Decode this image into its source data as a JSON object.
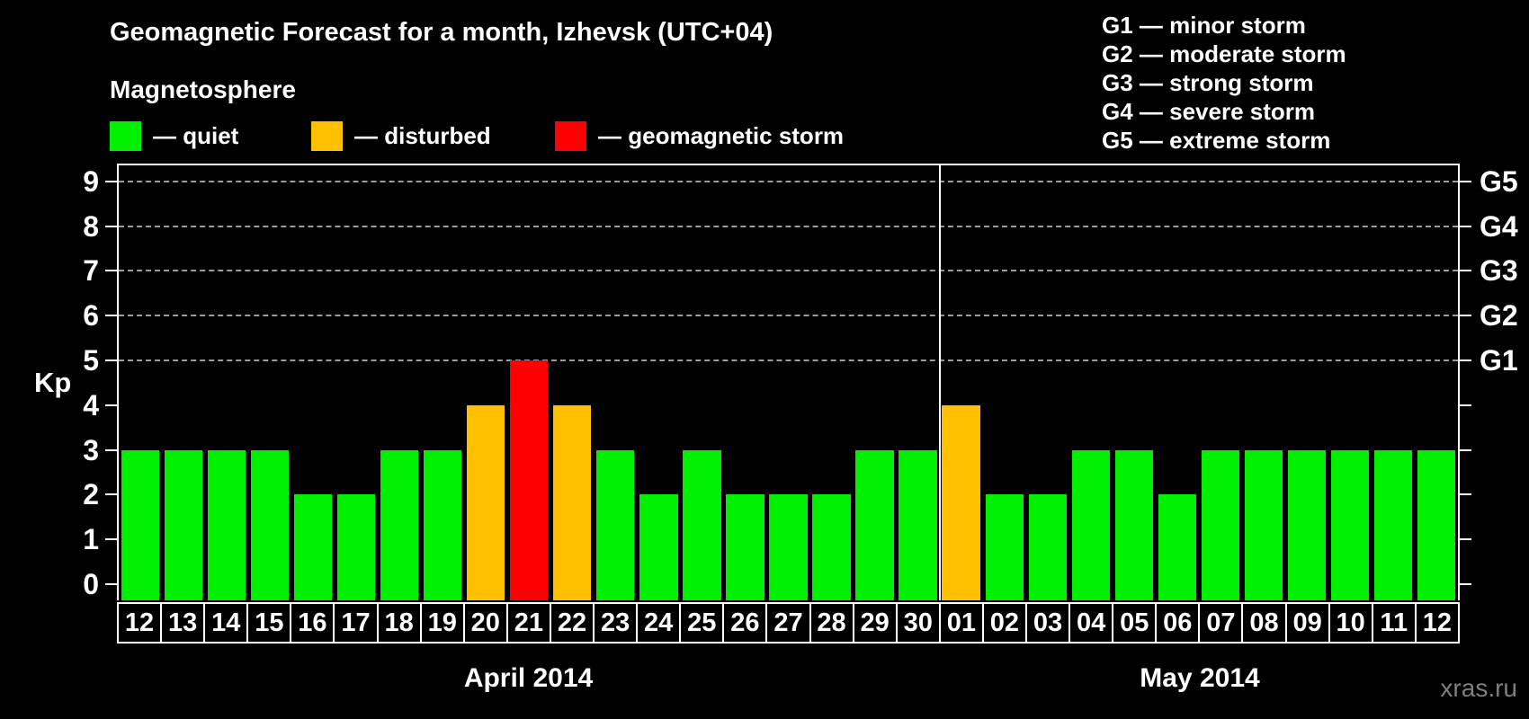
{
  "title": "Geomagnetic Forecast for a month, Izhevsk (UTC+04)",
  "legend": {
    "heading": "Magnetosphere",
    "items": [
      {
        "label": "— quiet",
        "status": "quiet",
        "color": "#00ee00"
      },
      {
        "label": "— disturbed",
        "status": "disturbed",
        "color": "#ffc000"
      },
      {
        "label": "— geomagnetic storm",
        "status": "storm",
        "color": "#ff0000"
      }
    ]
  },
  "g_scale_legend": [
    "G1 — minor storm",
    "G2 — moderate storm",
    "G3 — strong storm",
    "G4 — severe storm",
    "G5 — extreme storm"
  ],
  "y_axis": {
    "label": "Kp",
    "ticks": [
      0,
      1,
      2,
      3,
      4,
      5,
      6,
      7,
      8,
      9
    ]
  },
  "right_axis": {
    "ticks": [
      0,
      1,
      2,
      3,
      4,
      5,
      6,
      7,
      8,
      9
    ],
    "labels": [
      {
        "text": "G1",
        "value": 5
      },
      {
        "text": "G2",
        "value": 6
      },
      {
        "text": "G3",
        "value": 7
      },
      {
        "text": "G4",
        "value": 8
      },
      {
        "text": "G5",
        "value": 9
      }
    ]
  },
  "months": [
    {
      "label": "April 2014",
      "days": 19
    },
    {
      "label": "May 2014",
      "days": 12
    }
  ],
  "watermark": "xras.ru",
  "chart_data": {
    "type": "bar",
    "title": "Geomagnetic Forecast for a month, Izhevsk (UTC+04)",
    "ylabel": "Kp",
    "ylim": [
      0,
      9.4
    ],
    "grid_values": [
      5,
      6,
      7,
      8,
      9
    ],
    "legend_position": "top-left",
    "status_colors": {
      "quiet": "#00ee00",
      "disturbed": "#ffc000",
      "storm": "#ff0000"
    },
    "bars": [
      {
        "month": "April 2014",
        "day": "12",
        "kp": 3,
        "status": "quiet"
      },
      {
        "month": "April 2014",
        "day": "13",
        "kp": 3,
        "status": "quiet"
      },
      {
        "month": "April 2014",
        "day": "14",
        "kp": 3,
        "status": "quiet"
      },
      {
        "month": "April 2014",
        "day": "15",
        "kp": 3,
        "status": "quiet"
      },
      {
        "month": "April 2014",
        "day": "16",
        "kp": 2,
        "status": "quiet"
      },
      {
        "month": "April 2014",
        "day": "17",
        "kp": 2,
        "status": "quiet"
      },
      {
        "month": "April 2014",
        "day": "18",
        "kp": 3,
        "status": "quiet"
      },
      {
        "month": "April 2014",
        "day": "19",
        "kp": 3,
        "status": "quiet"
      },
      {
        "month": "April 2014",
        "day": "20",
        "kp": 4,
        "status": "disturbed"
      },
      {
        "month": "April 2014",
        "day": "21",
        "kp": 5,
        "status": "storm"
      },
      {
        "month": "April 2014",
        "day": "22",
        "kp": 4,
        "status": "disturbed"
      },
      {
        "month": "April 2014",
        "day": "23",
        "kp": 3,
        "status": "quiet"
      },
      {
        "month": "April 2014",
        "day": "24",
        "kp": 2,
        "status": "quiet"
      },
      {
        "month": "April 2014",
        "day": "25",
        "kp": 3,
        "status": "quiet"
      },
      {
        "month": "April 2014",
        "day": "26",
        "kp": 2,
        "status": "quiet"
      },
      {
        "month": "April 2014",
        "day": "27",
        "kp": 2,
        "status": "quiet"
      },
      {
        "month": "April 2014",
        "day": "28",
        "kp": 2,
        "status": "quiet"
      },
      {
        "month": "April 2014",
        "day": "29",
        "kp": 3,
        "status": "quiet"
      },
      {
        "month": "April 2014",
        "day": "30",
        "kp": 3,
        "status": "quiet"
      },
      {
        "month": "May 2014",
        "day": "01",
        "kp": 4,
        "status": "disturbed"
      },
      {
        "month": "May 2014",
        "day": "02",
        "kp": 2,
        "status": "quiet"
      },
      {
        "month": "May 2014",
        "day": "03",
        "kp": 2,
        "status": "quiet"
      },
      {
        "month": "May 2014",
        "day": "04",
        "kp": 3,
        "status": "quiet"
      },
      {
        "month": "May 2014",
        "day": "05",
        "kp": 3,
        "status": "quiet"
      },
      {
        "month": "May 2014",
        "day": "06",
        "kp": 2,
        "status": "quiet"
      },
      {
        "month": "May 2014",
        "day": "07",
        "kp": 3,
        "status": "quiet"
      },
      {
        "month": "May 2014",
        "day": "08",
        "kp": 3,
        "status": "quiet"
      },
      {
        "month": "May 2014",
        "day": "09",
        "kp": 3,
        "status": "quiet"
      },
      {
        "month": "May 2014",
        "day": "10",
        "kp": 3,
        "status": "quiet"
      },
      {
        "month": "May 2014",
        "day": "11",
        "kp": 3,
        "status": "quiet"
      },
      {
        "month": "May 2014",
        "day": "12",
        "kp": 3,
        "status": "quiet"
      }
    ]
  }
}
